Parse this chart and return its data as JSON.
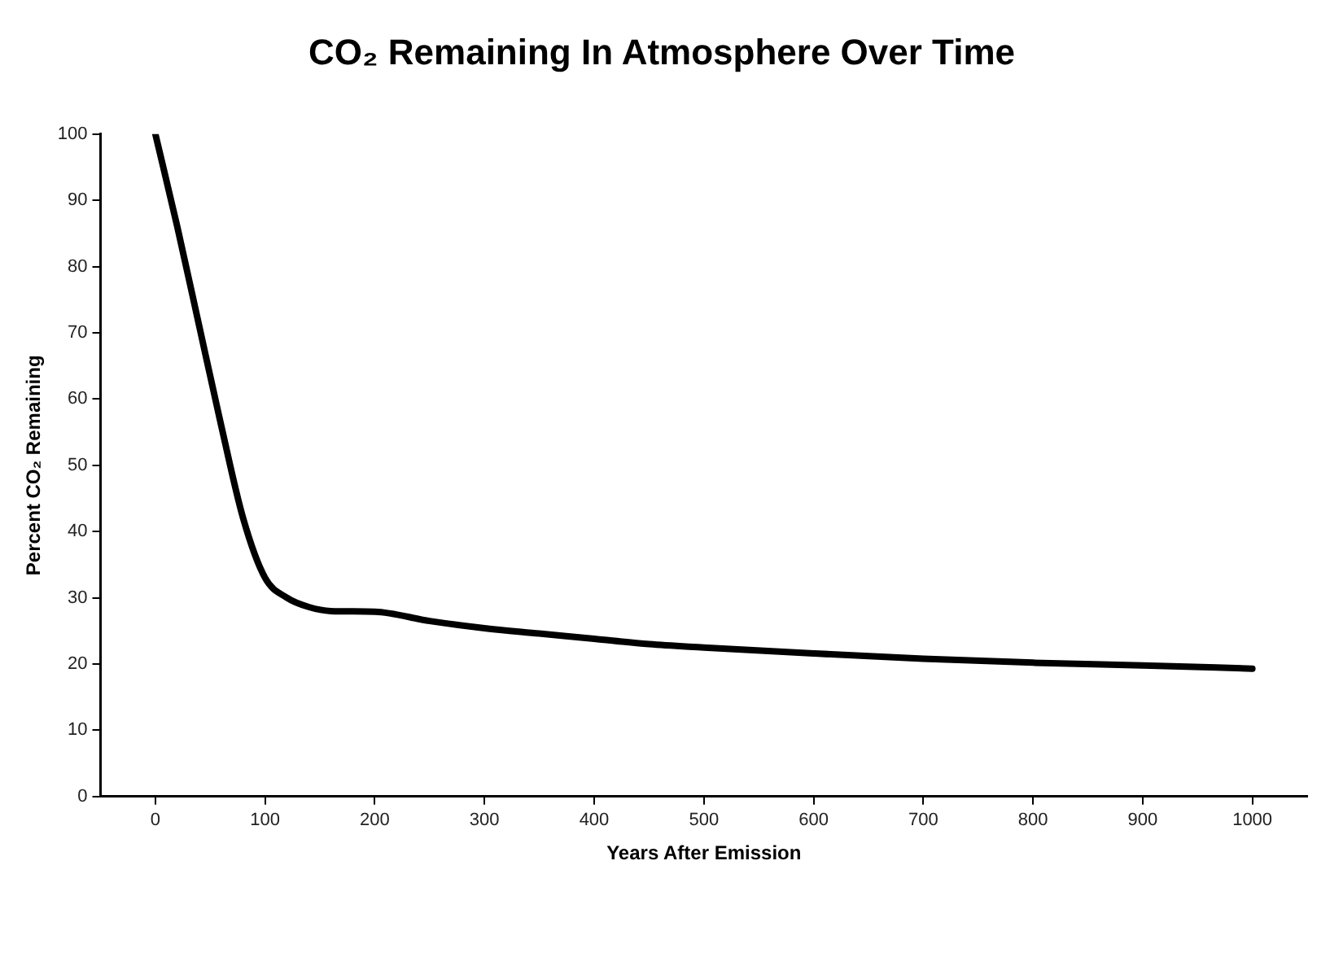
{
  "chart_data": {
    "type": "line",
    "title": "CO₂ Remaining In Atmosphere Over Time",
    "xlabel": "Years After Emission",
    "ylabel": "Percent CO₂ Remaining",
    "x": [
      0,
      20,
      40,
      60,
      80,
      100,
      120,
      140,
      160,
      200,
      250,
      300,
      350,
      400,
      450,
      500,
      600,
      700,
      800,
      900,
      1000
    ],
    "series": [
      {
        "color": "#000000",
        "values": [
          100,
          86,
          71,
          56,
          42,
          33,
          30,
          28.6,
          28,
          27.9,
          26.5,
          25.4,
          24.6,
          23.8,
          23,
          22.5,
          21.6,
          20.8,
          20.2,
          19.8,
          19.3
        ]
      }
    ],
    "xlim": [
      -50,
      1050
    ],
    "xticks": [
      0,
      100,
      200,
      300,
      400,
      500,
      600,
      700,
      800,
      900,
      1000
    ],
    "ylim": [
      0,
      100
    ],
    "yticks": [
      0,
      10,
      20,
      30,
      40,
      50,
      60,
      70,
      80,
      90,
      100
    ],
    "grid": false,
    "legend": false,
    "marker": "none",
    "line_style": "solid"
  }
}
